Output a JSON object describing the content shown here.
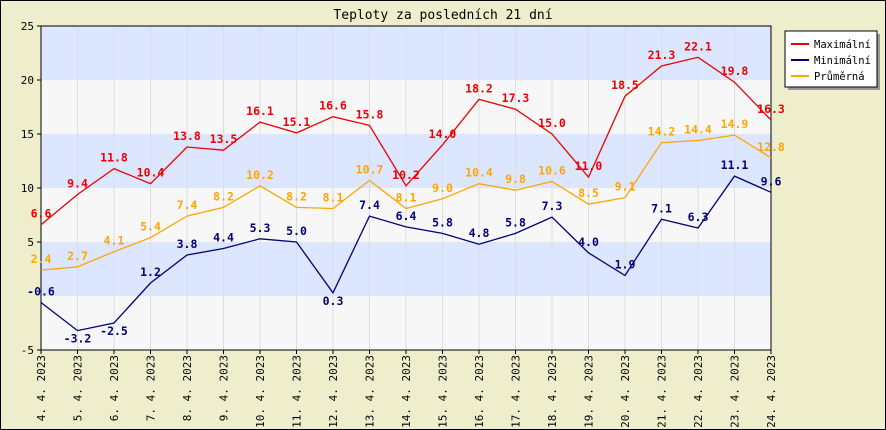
{
  "chart_data": {
    "type": "line",
    "title": "Teploty za posledních 21 dní",
    "xlabel": "",
    "ylabel": "",
    "categories": [
      "4. 4. 2023",
      "5. 4. 2023",
      "6. 4. 2023",
      "7. 4. 2023",
      "8. 4. 2023",
      "9. 4. 2023",
      "10. 4. 2023",
      "11. 4. 2023",
      "12. 4. 2023",
      "13. 4. 2023",
      "14. 4. 2023",
      "15. 4. 2023",
      "16. 4. 2023",
      "17. 4. 2023",
      "18. 4. 2023",
      "19. 4. 2023",
      "20. 4. 2023",
      "21. 4. 2023",
      "22. 4. 2023",
      "23. 4. 2023",
      "24. 4. 2023"
    ],
    "ylim": [
      -5,
      25
    ],
    "yticks": [
      -5,
      5,
      10,
      15,
      20,
      25
    ],
    "grid": true,
    "legend_position": "top-right",
    "series": [
      {
        "name": "Maximální",
        "color": "#ee0000",
        "values": [
          6.6,
          9.4,
          11.8,
          10.4,
          13.8,
          13.5,
          16.1,
          15.1,
          16.6,
          15.8,
          10.2,
          14.0,
          18.2,
          17.3,
          15.0,
          11.0,
          18.5,
          21.3,
          22.1,
          19.8,
          16.3
        ]
      },
      {
        "name": "Minimální",
        "color": "#000077",
        "values": [
          -0.6,
          -3.2,
          -2.5,
          1.2,
          3.8,
          4.4,
          5.3,
          5.0,
          0.3,
          7.4,
          6.4,
          5.8,
          4.8,
          5.8,
          7.3,
          4.0,
          1.9,
          7.1,
          6.3,
          11.1,
          9.6
        ]
      },
      {
        "name": "Průměrná",
        "color": "#ffa500",
        "values": [
          2.4,
          2.7,
          4.1,
          5.4,
          7.4,
          8.2,
          10.2,
          8.2,
          8.1,
          10.7,
          8.1,
          9.0,
          10.4,
          9.8,
          10.6,
          8.5,
          9.1,
          14.2,
          14.4,
          14.9,
          12.8
        ]
      }
    ]
  }
}
